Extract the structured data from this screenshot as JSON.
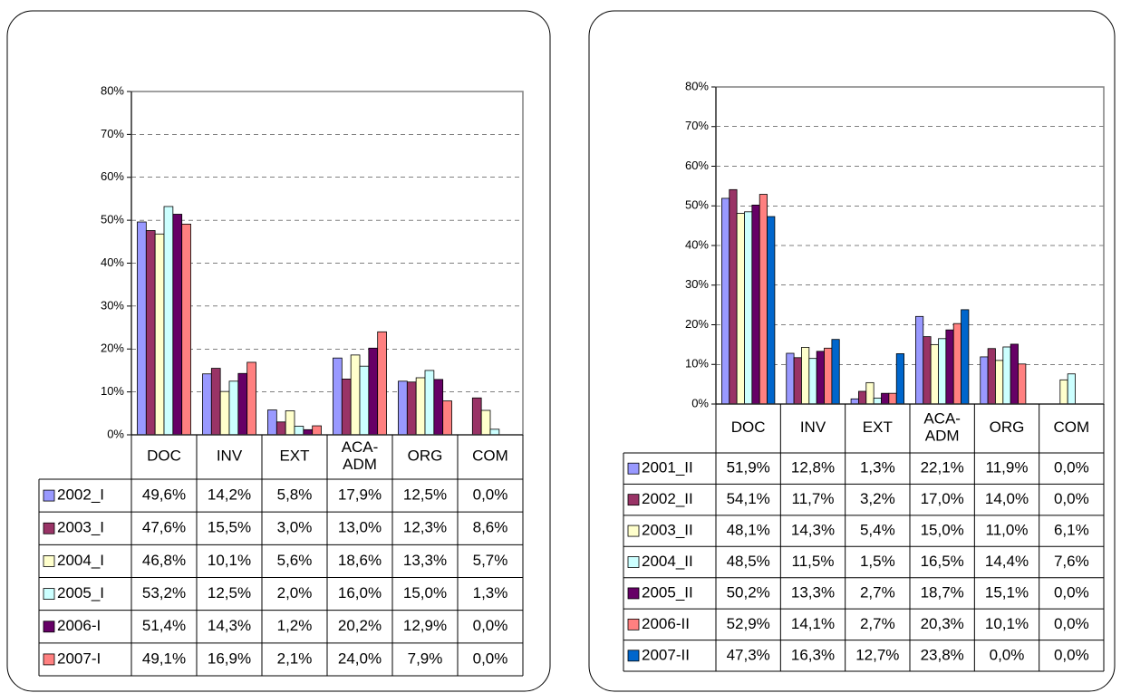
{
  "chart_data": [
    {
      "type": "bar",
      "categories": [
        "DOC",
        "INV",
        "EXT",
        "ACA-ADM",
        "ORG",
        "COM"
      ],
      "ylim": [
        0,
        80
      ],
      "yticks": [
        {
          "value": 0,
          "label": "0%"
        },
        {
          "value": 10,
          "label": "10%"
        },
        {
          "value": 20,
          "label": "20%"
        },
        {
          "value": 30,
          "label": "30%"
        },
        {
          "value": 40,
          "label": "40%"
        },
        {
          "value": 50,
          "label": "50%"
        },
        {
          "value": 60,
          "label": "60%"
        },
        {
          "value": 70,
          "label": "70%"
        },
        {
          "value": 80,
          "label": "80%"
        }
      ],
      "grid": true,
      "series": [
        {
          "name": "2002_I",
          "color": "#9999ff",
          "values": [
            49.6,
            14.2,
            5.8,
            17.9,
            12.5,
            0.0
          ],
          "value_labels": [
            "49,6%",
            "14,2%",
            "5,8%",
            "17,9%",
            "12,5%",
            "0,0%"
          ]
        },
        {
          "name": "2003_I",
          "color": "#993366",
          "values": [
            47.6,
            15.5,
            3.0,
            13.0,
            12.3,
            8.6
          ],
          "value_labels": [
            "47,6%",
            "15,5%",
            "3,0%",
            "13,0%",
            "12,3%",
            "8,6%"
          ]
        },
        {
          "name": "2004_I",
          "color": "#ffffcc",
          "values": [
            46.8,
            10.1,
            5.6,
            18.6,
            13.3,
            5.7
          ],
          "value_labels": [
            "46,8%",
            "10,1%",
            "5,6%",
            "18,6%",
            "13,3%",
            "5,7%"
          ]
        },
        {
          "name": "2005_I",
          "color": "#ccffff",
          "values": [
            53.2,
            12.5,
            2.0,
            16.0,
            15.0,
            1.3
          ],
          "value_labels": [
            "53,2%",
            "12,5%",
            "2,0%",
            "16,0%",
            "15,0%",
            "1,3%"
          ]
        },
        {
          "name": "2006-I",
          "color": "#660066",
          "values": [
            51.4,
            14.3,
            1.2,
            20.2,
            12.9,
            0.0
          ],
          "value_labels": [
            "51,4%",
            "14,3%",
            "1,2%",
            "20,2%",
            "12,9%",
            "0,0%"
          ]
        },
        {
          "name": "2007-I",
          "color": "#ff8080",
          "values": [
            49.1,
            16.9,
            2.1,
            24.0,
            7.9,
            0.0
          ],
          "value_labels": [
            "49,1%",
            "16,9%",
            "2,1%",
            "24,0%",
            "7,9%",
            "0,0%"
          ]
        }
      ]
    },
    {
      "type": "bar",
      "categories": [
        "DOC",
        "INV",
        "EXT",
        "ACA-ADM",
        "ORG",
        "COM"
      ],
      "ylim": [
        0,
        80
      ],
      "yticks": [
        {
          "value": 0,
          "label": "0%"
        },
        {
          "value": 10,
          "label": "10%"
        },
        {
          "value": 20,
          "label": "20%"
        },
        {
          "value": 30,
          "label": "30%"
        },
        {
          "value": 40,
          "label": "40%"
        },
        {
          "value": 50,
          "label": "50%"
        },
        {
          "value": 60,
          "label": "60%"
        },
        {
          "value": 70,
          "label": "70%"
        },
        {
          "value": 80,
          "label": "80%"
        }
      ],
      "grid": true,
      "series": [
        {
          "name": "2001_II",
          "color": "#9999ff",
          "values": [
            51.9,
            12.8,
            1.3,
            22.1,
            11.9,
            0.0
          ],
          "value_labels": [
            "51,9%",
            "12,8%",
            "1,3%",
            "22,1%",
            "11,9%",
            "0,0%"
          ]
        },
        {
          "name": "2002_II",
          "color": "#993366",
          "values": [
            54.1,
            11.7,
            3.2,
            17.0,
            14.0,
            0.0
          ],
          "value_labels": [
            "54,1%",
            "11,7%",
            "3,2%",
            "17,0%",
            "14,0%",
            "0,0%"
          ]
        },
        {
          "name": "2003_II",
          "color": "#ffffcc",
          "values": [
            48.1,
            14.3,
            5.4,
            15.0,
            11.0,
            6.1
          ],
          "value_labels": [
            "48,1%",
            "14,3%",
            "5,4%",
            "15,0%",
            "11,0%",
            "6,1%"
          ]
        },
        {
          "name": "2004_II",
          "color": "#ccffff",
          "values": [
            48.5,
            11.5,
            1.5,
            16.5,
            14.4,
            7.6
          ],
          "value_labels": [
            "48,5%",
            "11,5%",
            "1,5%",
            "16,5%",
            "14,4%",
            "7,6%"
          ]
        },
        {
          "name": "2005_II",
          "color": "#660066",
          "values": [
            50.2,
            13.3,
            2.7,
            18.7,
            15.1,
            0.0
          ],
          "value_labels": [
            "50,2%",
            "13,3%",
            "2,7%",
            "18,7%",
            "15,1%",
            "0,0%"
          ]
        },
        {
          "name": "2006-II",
          "color": "#ff8080",
          "values": [
            52.9,
            14.1,
            2.7,
            20.3,
            10.1,
            0.0
          ],
          "value_labels": [
            "52,9%",
            "14,1%",
            "2,7%",
            "20,3%",
            "10,1%",
            "0,0%"
          ]
        },
        {
          "name": "2007-II",
          "color": "#0066cc",
          "values": [
            47.3,
            16.3,
            12.7,
            23.8,
            0.0,
            0.0
          ],
          "value_labels": [
            "47,3%",
            "16,3%",
            "12,7%",
            "23,8%",
            "0,0%",
            "0,0%"
          ]
        }
      ]
    }
  ]
}
